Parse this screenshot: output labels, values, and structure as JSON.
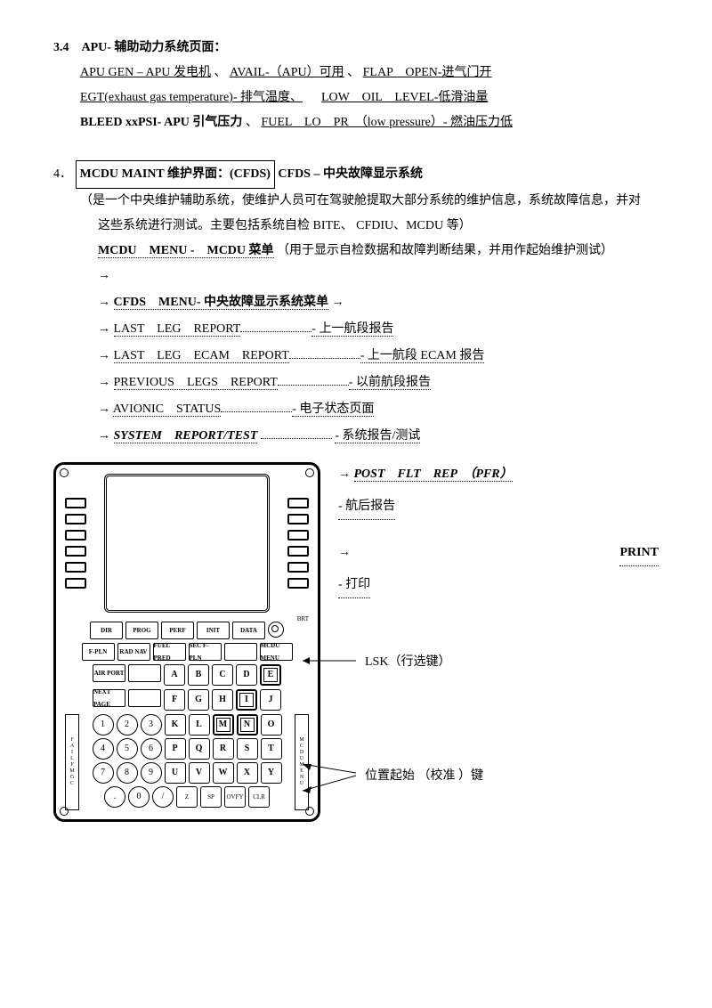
{
  "section34": {
    "title": "3.4　APU- 辅助动力系统页面：",
    "line1a": "APU GEN – APU 发电机",
    "line1b": "AVAIL-（APU）可用",
    "line1c": "FLAP　OPEN-进气门开",
    "line2a": "EGT(exhaust gas temperature)- 排气温度、",
    "line2b": "LOW　OIL　LEVEL-低滑油量",
    "line3a": "BLEED xxPSI- APU 引气压力",
    "line3b": "FUEL　LO　PR　（low pressure）- 燃油压力低"
  },
  "section4": {
    "num": "4．",
    "box": "MCDU MAINT 维护界面：(CFDS)",
    "after_box": "CFDS – 中央故障显示系统",
    "desc1": "（是一个中央维护辅助系统，使维护人员可在驾驶舱提取大部分系统的维护信息，系统故障信息，并对",
    "desc2": "这些系统进行测试。主要包括系统自检 BITE、 CFDIU、MCDU 等）",
    "mcdu_menu_label": "MCDU　MENU -　MCDU 菜单",
    "mcdu_menu_note": "（用于显示自检数据和故障判断结果，并用作起始维护测试）",
    "cfds_menu": "CFDS　MENU- 中央故障显示系统菜单",
    "items": [
      {
        "en": "LAST　LEG　REPORT",
        "cn": "- 上一航段报告"
      },
      {
        "en": "LAST　LEG　ECAM　REPORT",
        "cn": "- 上一航段 ECAM 报告"
      },
      {
        "en": "PREVIOUS　LEGS　REPORT",
        "cn": "- 以前航段报告"
      },
      {
        "en": "AVIONIC　STATUS",
        "cn": "- 电子状态页面"
      }
    ],
    "sys_report_en": "SYSTEM　REPORT/TEST",
    "sys_report_cn": "- 系统报告/测试"
  },
  "right_notes": {
    "post_flt": "POST　FLT　REP　（PFR）",
    "post_flt_cn": "- 航后报告",
    "print_en": "PRINT",
    "print_cn": "- 打印",
    "lsk": "LSK（行选键）",
    "calib": "位置起始 （校准 ）键"
  },
  "mcdu": {
    "brt": "BRT",
    "mode_rows": [
      [
        "DIR",
        "PROG",
        "PERF",
        "INIT",
        "DATA",
        ""
      ],
      [
        "F-PLN",
        "RAD NAV",
        "FUEL PRED",
        "SEC F-PLN",
        "",
        "MCDU MENU"
      ],
      [
        "AIR PORT",
        "",
        "",
        "",
        "",
        ""
      ],
      [
        "NEXT PAGE",
        "",
        "",
        "",
        "",
        ""
      ]
    ],
    "alpha_rows": [
      [
        "A",
        "B",
        "C",
        "D",
        "E"
      ],
      [
        "F",
        "G",
        "H",
        "I",
        "J"
      ]
    ],
    "mixed_rows": [
      {
        "nums": [
          "1",
          "2",
          "3"
        ],
        "alpha": [
          "K",
          "L",
          "M",
          "N",
          "O"
        ]
      },
      {
        "nums": [
          "4",
          "5",
          "6"
        ],
        "alpha": [
          "P",
          "Q",
          "R",
          "S",
          "T"
        ]
      },
      {
        "nums": [
          "7",
          "8",
          "9"
        ],
        "alpha": [
          "U",
          "V",
          "W",
          "X",
          "Y"
        ]
      }
    ],
    "last_nums": [
      ".",
      "0",
      "/"
    ],
    "last_funcs": [
      "Z",
      "SP",
      "OVFY",
      "CLR"
    ],
    "side_left_top": "FAIL",
    "side_left_bot": "FMGC",
    "side_right_top": "MCDU",
    "side_right_bot": "MENU"
  }
}
